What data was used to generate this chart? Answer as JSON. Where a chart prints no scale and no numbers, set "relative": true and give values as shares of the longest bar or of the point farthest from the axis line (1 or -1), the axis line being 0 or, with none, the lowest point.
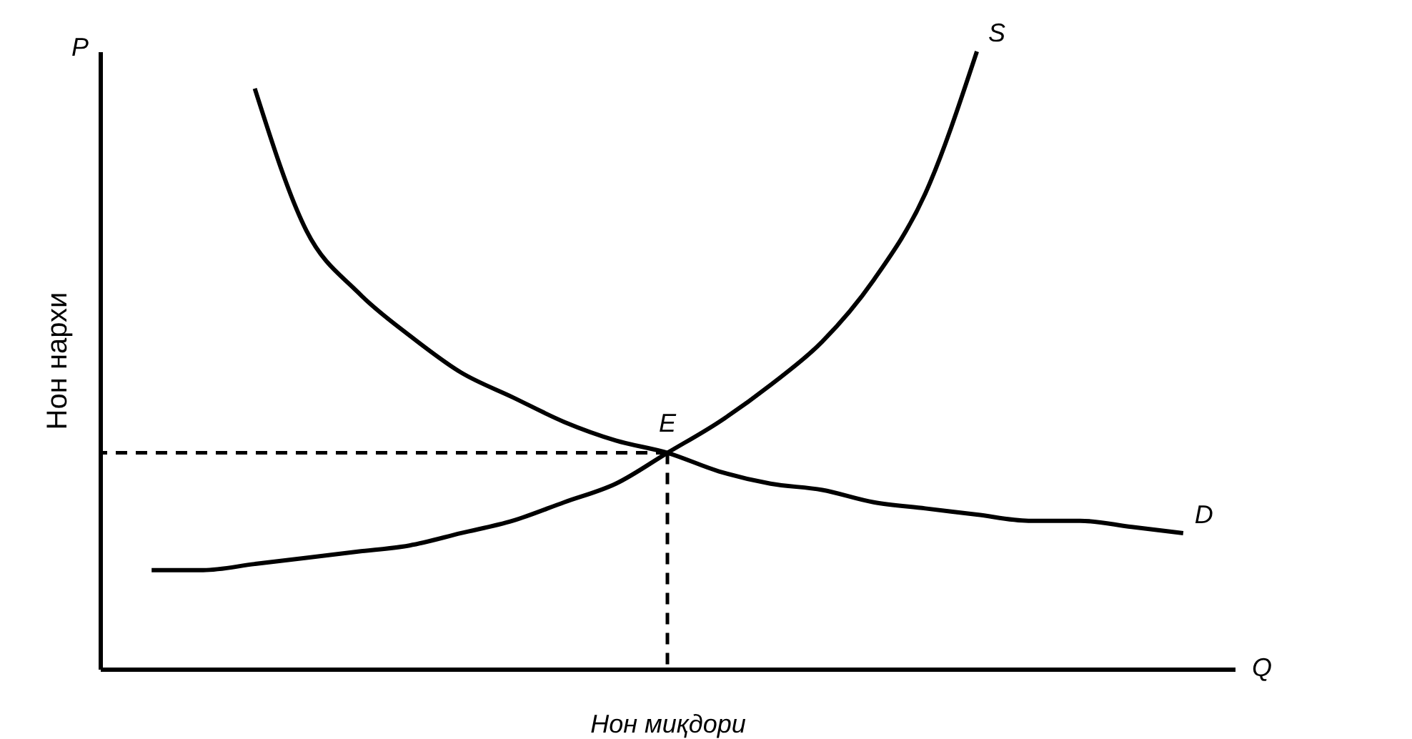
{
  "chart_data": {
    "type": "line",
    "relative": true,
    "xlabel": "Нон миқдори",
    "ylabel": "Нон нархи",
    "categories": [
      null,
      null,
      null,
      null,
      null,
      null,
      null,
      null,
      null,
      null,
      null,
      null,
      null,
      null,
      null,
      null,
      null,
      null,
      null,
      null,
      null
    ],
    "series": [
      {
        "name": "S",
        "color": "#000000",
        "values": [
          0.16,
          0.16,
          0.17,
          0.18,
          0.19,
          0.2,
          0.22,
          0.24,
          0.27,
          0.3,
          0.35,
          0.4,
          0.46,
          0.53,
          0.63,
          0.77,
          1,
          null,
          null,
          null,
          null
        ]
      },
      {
        "name": "D",
        "color": "#000000",
        "values": [
          null,
          null,
          0.94,
          0.71,
          0.61,
          0.54,
          0.48,
          0.44,
          0.4,
          0.37,
          0.35,
          0.32,
          0.3,
          0.29,
          0.27,
          0.26,
          0.25,
          0.24,
          0.24,
          0.23,
          0.22
        ]
      }
    ],
    "ref_lines": [
      {
        "axis": "y",
        "value": 0.35,
        "line_style": "dashed",
        "color": "#000000"
      }
    ],
    "annotations": [
      "P",
      "Q",
      {
        "text": "E",
        "y": 0.35
      }
    ],
    "tick_labels": false,
    "grid": false,
    "marker": "none",
    "line_style": "solid"
  }
}
